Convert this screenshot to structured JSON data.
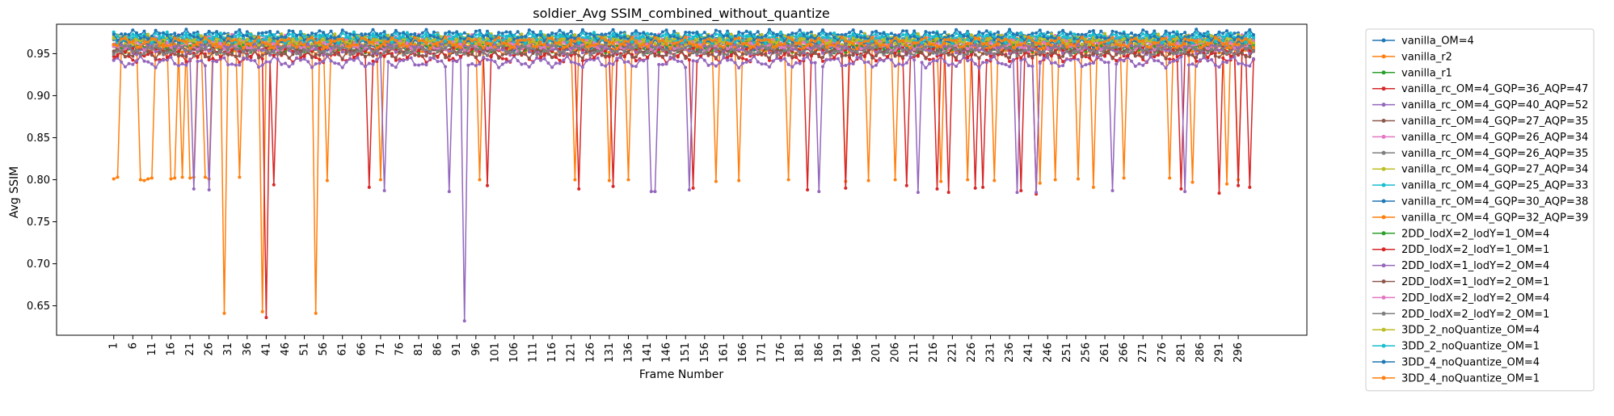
{
  "chart_data": {
    "type": "line",
    "title": "soldier_Avg SSIM_combined_without_quantize",
    "xlabel": "Frame Number",
    "ylabel": "Avg SSIM",
    "xlim": [
      -14,
      314
    ],
    "ylim": [
      0.615,
      0.985
    ],
    "x_ticks": [
      1,
      6,
      11,
      16,
      21,
      26,
      31,
      36,
      41,
      46,
      51,
      56,
      61,
      66,
      71,
      76,
      81,
      86,
      91,
      96,
      101,
      106,
      111,
      116,
      121,
      126,
      131,
      136,
      141,
      146,
      151,
      156,
      161,
      166,
      171,
      176,
      181,
      186,
      191,
      196,
      201,
      206,
      211,
      216,
      221,
      226,
      231,
      236,
      241,
      246,
      251,
      256,
      261,
      266,
      271,
      276,
      281,
      286,
      291,
      296
    ],
    "y_ticks": [
      0.65,
      0.7,
      0.75,
      0.8,
      0.85,
      0.9,
      0.95
    ],
    "y_tick_labels": [
      "0.65",
      "0.70",
      "0.75",
      "0.80",
      "0.85",
      "0.90",
      "0.95"
    ],
    "x_range": [
      1,
      300
    ],
    "grid": false,
    "legend_placement": "outside-right",
    "series": [
      {
        "name": "vanilla_OM=4",
        "color": "#1f77b4",
        "base": 0.97
      },
      {
        "name": "vanilla_r2",
        "color": "#ff7f0e",
        "base": 0.962,
        "drops": [
          [
            1,
            0.801
          ],
          [
            2,
            0.803
          ],
          [
            8,
            0.8
          ],
          [
            9,
            0.799
          ],
          [
            10,
            0.801
          ],
          [
            11,
            0.802
          ],
          [
            16,
            0.801
          ],
          [
            17,
            0.802
          ],
          [
            19,
            0.803
          ],
          [
            21,
            0.802
          ],
          [
            22,
            0.803
          ],
          [
            25,
            0.803
          ],
          [
            26,
            0.801
          ],
          [
            30,
            0.641
          ],
          [
            34,
            0.803
          ],
          [
            40,
            0.643
          ],
          [
            54,
            0.641
          ],
          [
            57,
            0.799
          ],
          [
            71,
            0.8
          ],
          [
            97,
            0.8
          ],
          [
            122,
            0.8
          ],
          [
            131,
            0.799
          ],
          [
            136,
            0.8
          ],
          [
            159,
            0.798
          ],
          [
            165,
            0.799
          ],
          [
            178,
            0.8
          ],
          [
            193,
            0.798
          ],
          [
            199,
            0.799
          ],
          [
            206,
            0.8
          ],
          [
            218,
            0.798
          ],
          [
            225,
            0.8
          ],
          [
            232,
            0.799
          ],
          [
            244,
            0.796
          ],
          [
            248,
            0.8
          ],
          [
            254,
            0.801
          ],
          [
            258,
            0.791
          ],
          [
            266,
            0.802
          ],
          [
            278,
            0.802
          ],
          [
            284,
            0.797
          ],
          [
            293,
            0.795
          ],
          [
            296,
            0.8
          ]
        ]
      },
      {
        "name": "vanilla_r1",
        "color": "#2ca02c",
        "base": 0.958
      },
      {
        "name": "vanilla_rc_OM=4_GQP=36_AQP=47",
        "color": "#d62728",
        "base": 0.946,
        "drops": [
          [
            41,
            0.636
          ],
          [
            43,
            0.794
          ],
          [
            68,
            0.791
          ],
          [
            99,
            0.793
          ],
          [
            123,
            0.789
          ],
          [
            132,
            0.792
          ],
          [
            153,
            0.79
          ],
          [
            183,
            0.788
          ],
          [
            193,
            0.79
          ],
          [
            209,
            0.793
          ],
          [
            217,
            0.789
          ],
          [
            220,
            0.785
          ],
          [
            227,
            0.79
          ],
          [
            229,
            0.791
          ],
          [
            239,
            0.787
          ],
          [
            243,
            0.783
          ],
          [
            281,
            0.789
          ],
          [
            291,
            0.784
          ],
          [
            296,
            0.793
          ],
          [
            299,
            0.791
          ]
        ]
      },
      {
        "name": "vanilla_rc_OM=4_GQP=40_AQP=52",
        "color": "#9467bd",
        "base": 0.94,
        "drops": [
          [
            22,
            0.789
          ],
          [
            26,
            0.788
          ],
          [
            72,
            0.787
          ],
          [
            89,
            0.786
          ],
          [
            93,
            0.632
          ],
          [
            142,
            0.786
          ],
          [
            143,
            0.786
          ],
          [
            152,
            0.788
          ],
          [
            186,
            0.786
          ],
          [
            212,
            0.785
          ],
          [
            238,
            0.785
          ],
          [
            243,
            0.785
          ],
          [
            263,
            0.787
          ],
          [
            282,
            0.786
          ]
        ]
      },
      {
        "name": "vanilla_rc_OM=4_GQP=27_AQP=35",
        "color": "#8c564b",
        "base": 0.963
      },
      {
        "name": "vanilla_rc_OM=4_GQP=26_AQP=34",
        "color": "#e377c2",
        "base": 0.966
      },
      {
        "name": "vanilla_rc_OM=4_GQP=26_AQP=35",
        "color": "#7f7f7f",
        "base": 0.965
      },
      {
        "name": "vanilla_rc_OM=4_GQP=27_AQP=34",
        "color": "#bcbd22",
        "base": 0.964
      },
      {
        "name": "vanilla_rc_OM=4_GQP=25_AQP=33",
        "color": "#17becf",
        "base": 0.968
      },
      {
        "name": "vanilla_rc_OM=4_GQP=30_AQP=38",
        "color": "#1f77b4",
        "base": 0.96
      },
      {
        "name": "vanilla_rc_OM=4_GQP=32_AQP=39",
        "color": "#ff7f0e",
        "base": 0.956
      },
      {
        "name": "2DD_lodX=2_lodY=1_OM=4",
        "color": "#2ca02c",
        "base": 0.957
      },
      {
        "name": "2DD_lodX=2_lodY=1_OM=1",
        "color": "#d62728",
        "base": 0.952
      },
      {
        "name": "2DD_lodX=1_lodY=2_OM=4",
        "color": "#9467bd",
        "base": 0.955
      },
      {
        "name": "2DD_lodX=1_lodY=2_OM=1",
        "color": "#8c564b",
        "base": 0.951
      },
      {
        "name": "2DD_lodX=2_lodY=2_OM=4",
        "color": "#e377c2",
        "base": 0.959
      },
      {
        "name": "2DD_lodX=2_lodY=2_OM=1",
        "color": "#7f7f7f",
        "base": 0.954
      },
      {
        "name": "3DD_2_noQuantize_OM=4",
        "color": "#bcbd22",
        "base": 0.967
      },
      {
        "name": "3DD_2_noQuantize_OM=1",
        "color": "#17becf",
        "base": 0.969
      },
      {
        "name": "3DD_4_noQuantize_OM=4",
        "color": "#1f77b4",
        "base": 0.972
      },
      {
        "name": "3DD_4_noQuantize_OM=1",
        "color": "#ff7f0e",
        "base": 0.963
      }
    ]
  }
}
